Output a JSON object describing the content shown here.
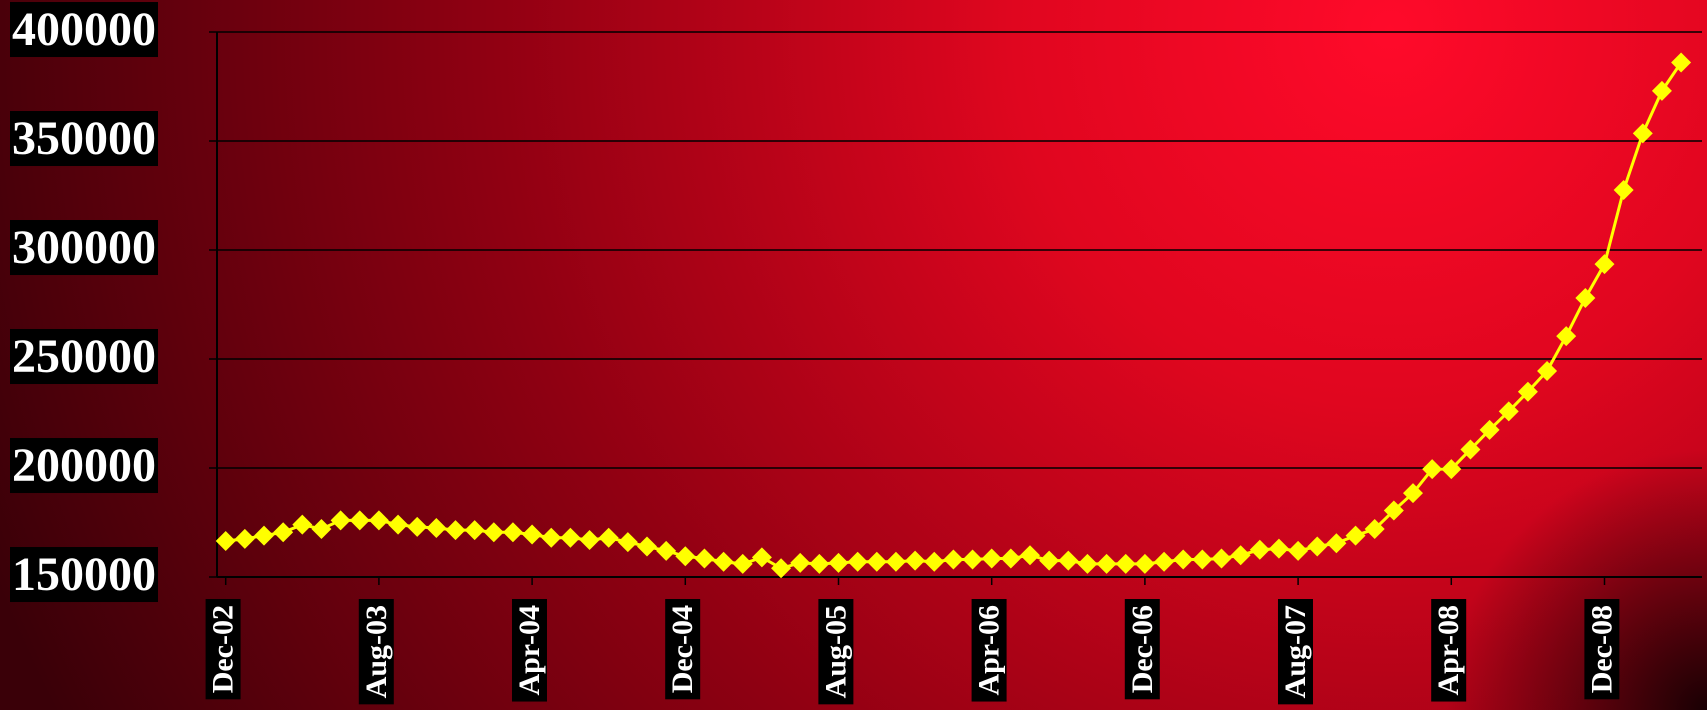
{
  "chart_data": {
    "type": "line",
    "categories": [
      "Dec-02",
      null,
      null,
      null,
      null,
      null,
      null,
      null,
      "Aug-03",
      null,
      null,
      null,
      null,
      null,
      null,
      null,
      "Apr-04",
      null,
      null,
      null,
      null,
      null,
      null,
      null,
      "Dec-04",
      null,
      null,
      null,
      null,
      null,
      null,
      null,
      "Aug-05",
      null,
      null,
      null,
      null,
      null,
      null,
      null,
      "Apr-06",
      null,
      null,
      null,
      null,
      null,
      null,
      null,
      "Dec-06",
      null,
      null,
      null,
      null,
      null,
      null,
      null,
      "Aug-07",
      null,
      null,
      null,
      null,
      null,
      null,
      null,
      "Apr-08",
      null,
      null,
      null,
      null,
      null,
      null,
      null,
      "Dec-08",
      null,
      null,
      null,
      null
    ],
    "series": [
      {
        "color": "#ffff00",
        "values": [
          166500,
          167500,
          169000,
          170500,
          174000,
          172000,
          176000,
          176000,
          176000,
          174000,
          173000,
          172500,
          171500,
          171500,
          170500,
          170500,
          169500,
          168000,
          168000,
          167000,
          168000,
          166000,
          164000,
          162000,
          159500,
          158500,
          157000,
          156000,
          159000,
          154000,
          156500,
          156000,
          156500,
          157000,
          157000,
          157000,
          157500,
          157000,
          158000,
          158000,
          158500,
          158500,
          160000,
          157500,
          157500,
          156000,
          156000,
          156000,
          156000,
          157000,
          158000,
          158000,
          158500,
          160000,
          162500,
          163000,
          162000,
          164000,
          165500,
          169000,
          172000,
          180500,
          188500,
          199500,
          199500,
          208500,
          217500,
          226000,
          235000,
          244500,
          260500,
          278000,
          293500,
          327500,
          353500,
          373000,
          386000
        ]
      }
    ],
    "ylim": [
      150000,
      400000
    ],
    "yticks": [
      150000,
      200000,
      250000,
      300000,
      350000,
      400000
    ],
    "grid": true
  }
}
